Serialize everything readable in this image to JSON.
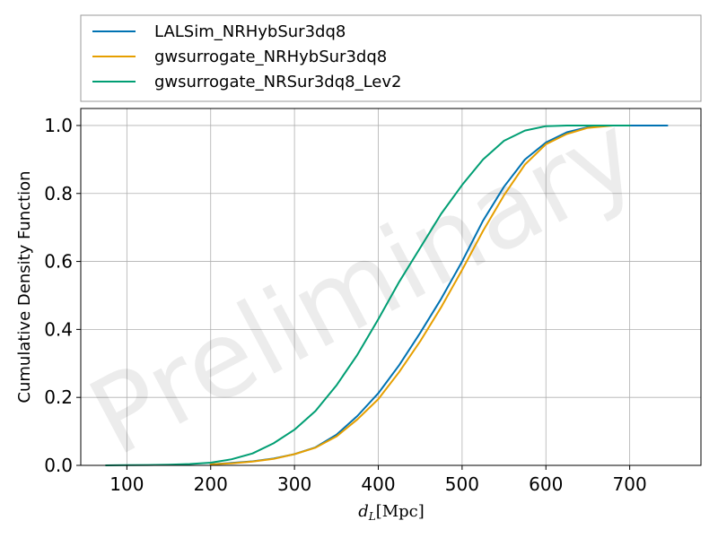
{
  "chart_data": {
    "type": "line",
    "title": "",
    "xlabel": "d_L[Mpc]",
    "ylabel": "Cumulative Density Function",
    "xlim": [
      45,
      785
    ],
    "ylim": [
      0,
      1.05
    ],
    "xticks": [
      100,
      200,
      300,
      400,
      500,
      600,
      700
    ],
    "yticks": [
      0.0,
      0.2,
      0.4,
      0.6,
      0.8,
      1.0
    ],
    "xtick_labels": [
      "100",
      "200",
      "300",
      "400",
      "500",
      "600",
      "700"
    ],
    "ytick_labels": [
      "0.0",
      "0.2",
      "0.4",
      "0.6",
      "0.8",
      "1.0"
    ],
    "grid": true,
    "legend_position": "above-plot",
    "watermark": "Preliminary",
    "series": [
      {
        "name": "LALSim_NRHybSur3dq8",
        "color": "#0072b2",
        "x": [
          200,
          225,
          250,
          275,
          300,
          325,
          350,
          375,
          400,
          425,
          450,
          475,
          500,
          525,
          550,
          575,
          600,
          625,
          650,
          675,
          700,
          745
        ],
        "y": [
          0.003,
          0.007,
          0.012,
          0.02,
          0.033,
          0.053,
          0.09,
          0.145,
          0.212,
          0.295,
          0.39,
          0.49,
          0.6,
          0.72,
          0.82,
          0.9,
          0.95,
          0.98,
          0.995,
          1.0,
          1.0,
          1.0
        ]
      },
      {
        "name": "gwsurrogate_NRHybSur3dq8",
        "color": "#e69f00",
        "x": [
          200,
          225,
          250,
          275,
          300,
          325,
          350,
          375,
          400,
          425,
          450,
          475,
          500,
          525,
          550,
          575,
          600,
          625,
          650,
          680
        ],
        "y": [
          0.003,
          0.006,
          0.011,
          0.019,
          0.033,
          0.052,
          0.085,
          0.135,
          0.195,
          0.275,
          0.365,
          0.465,
          0.575,
          0.69,
          0.795,
          0.885,
          0.945,
          0.975,
          0.993,
          1.0
        ]
      },
      {
        "name": "gwsurrogate_NRSur3dq8_Lev2",
        "color": "#009e73",
        "x": [
          75,
          100,
          125,
          150,
          175,
          200,
          225,
          250,
          275,
          300,
          325,
          350,
          375,
          400,
          425,
          450,
          475,
          500,
          525,
          550,
          575,
          600,
          625,
          650,
          675,
          700
        ],
        "y": [
          0.0,
          0.0005,
          0.001,
          0.002,
          0.004,
          0.008,
          0.018,
          0.035,
          0.065,
          0.105,
          0.16,
          0.235,
          0.325,
          0.43,
          0.54,
          0.64,
          0.74,
          0.825,
          0.9,
          0.955,
          0.985,
          0.998,
          1.0,
          1.0,
          1.0,
          1.0
        ]
      }
    ]
  }
}
